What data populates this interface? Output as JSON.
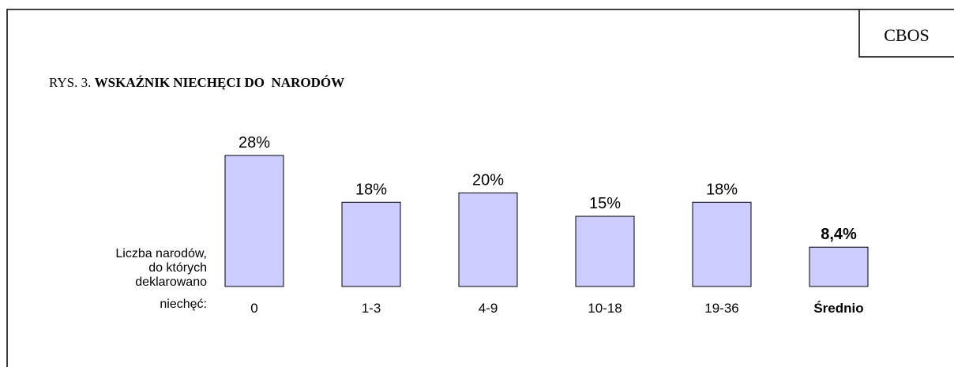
{
  "chart_data": {
    "type": "bar",
    "badge": "CBOS",
    "title_prefix": "RYS. 3.",
    "title": "WSKAŹNIK NIECHĘCI DO  NARODÓW",
    "x_label_lines": [
      "Liczba narodów,",
      "do których",
      "deklarowano",
      "niechęć:"
    ],
    "categories": [
      "0",
      "1-3",
      "4-9",
      "10-18",
      "19-36",
      "Średnio"
    ],
    "values": [
      28,
      18,
      20,
      15,
      18,
      8.4
    ],
    "value_labels": [
      "28%",
      "18%",
      "20%",
      "15%",
      "18%",
      "8,4%"
    ],
    "color": "#ccccff"
  }
}
